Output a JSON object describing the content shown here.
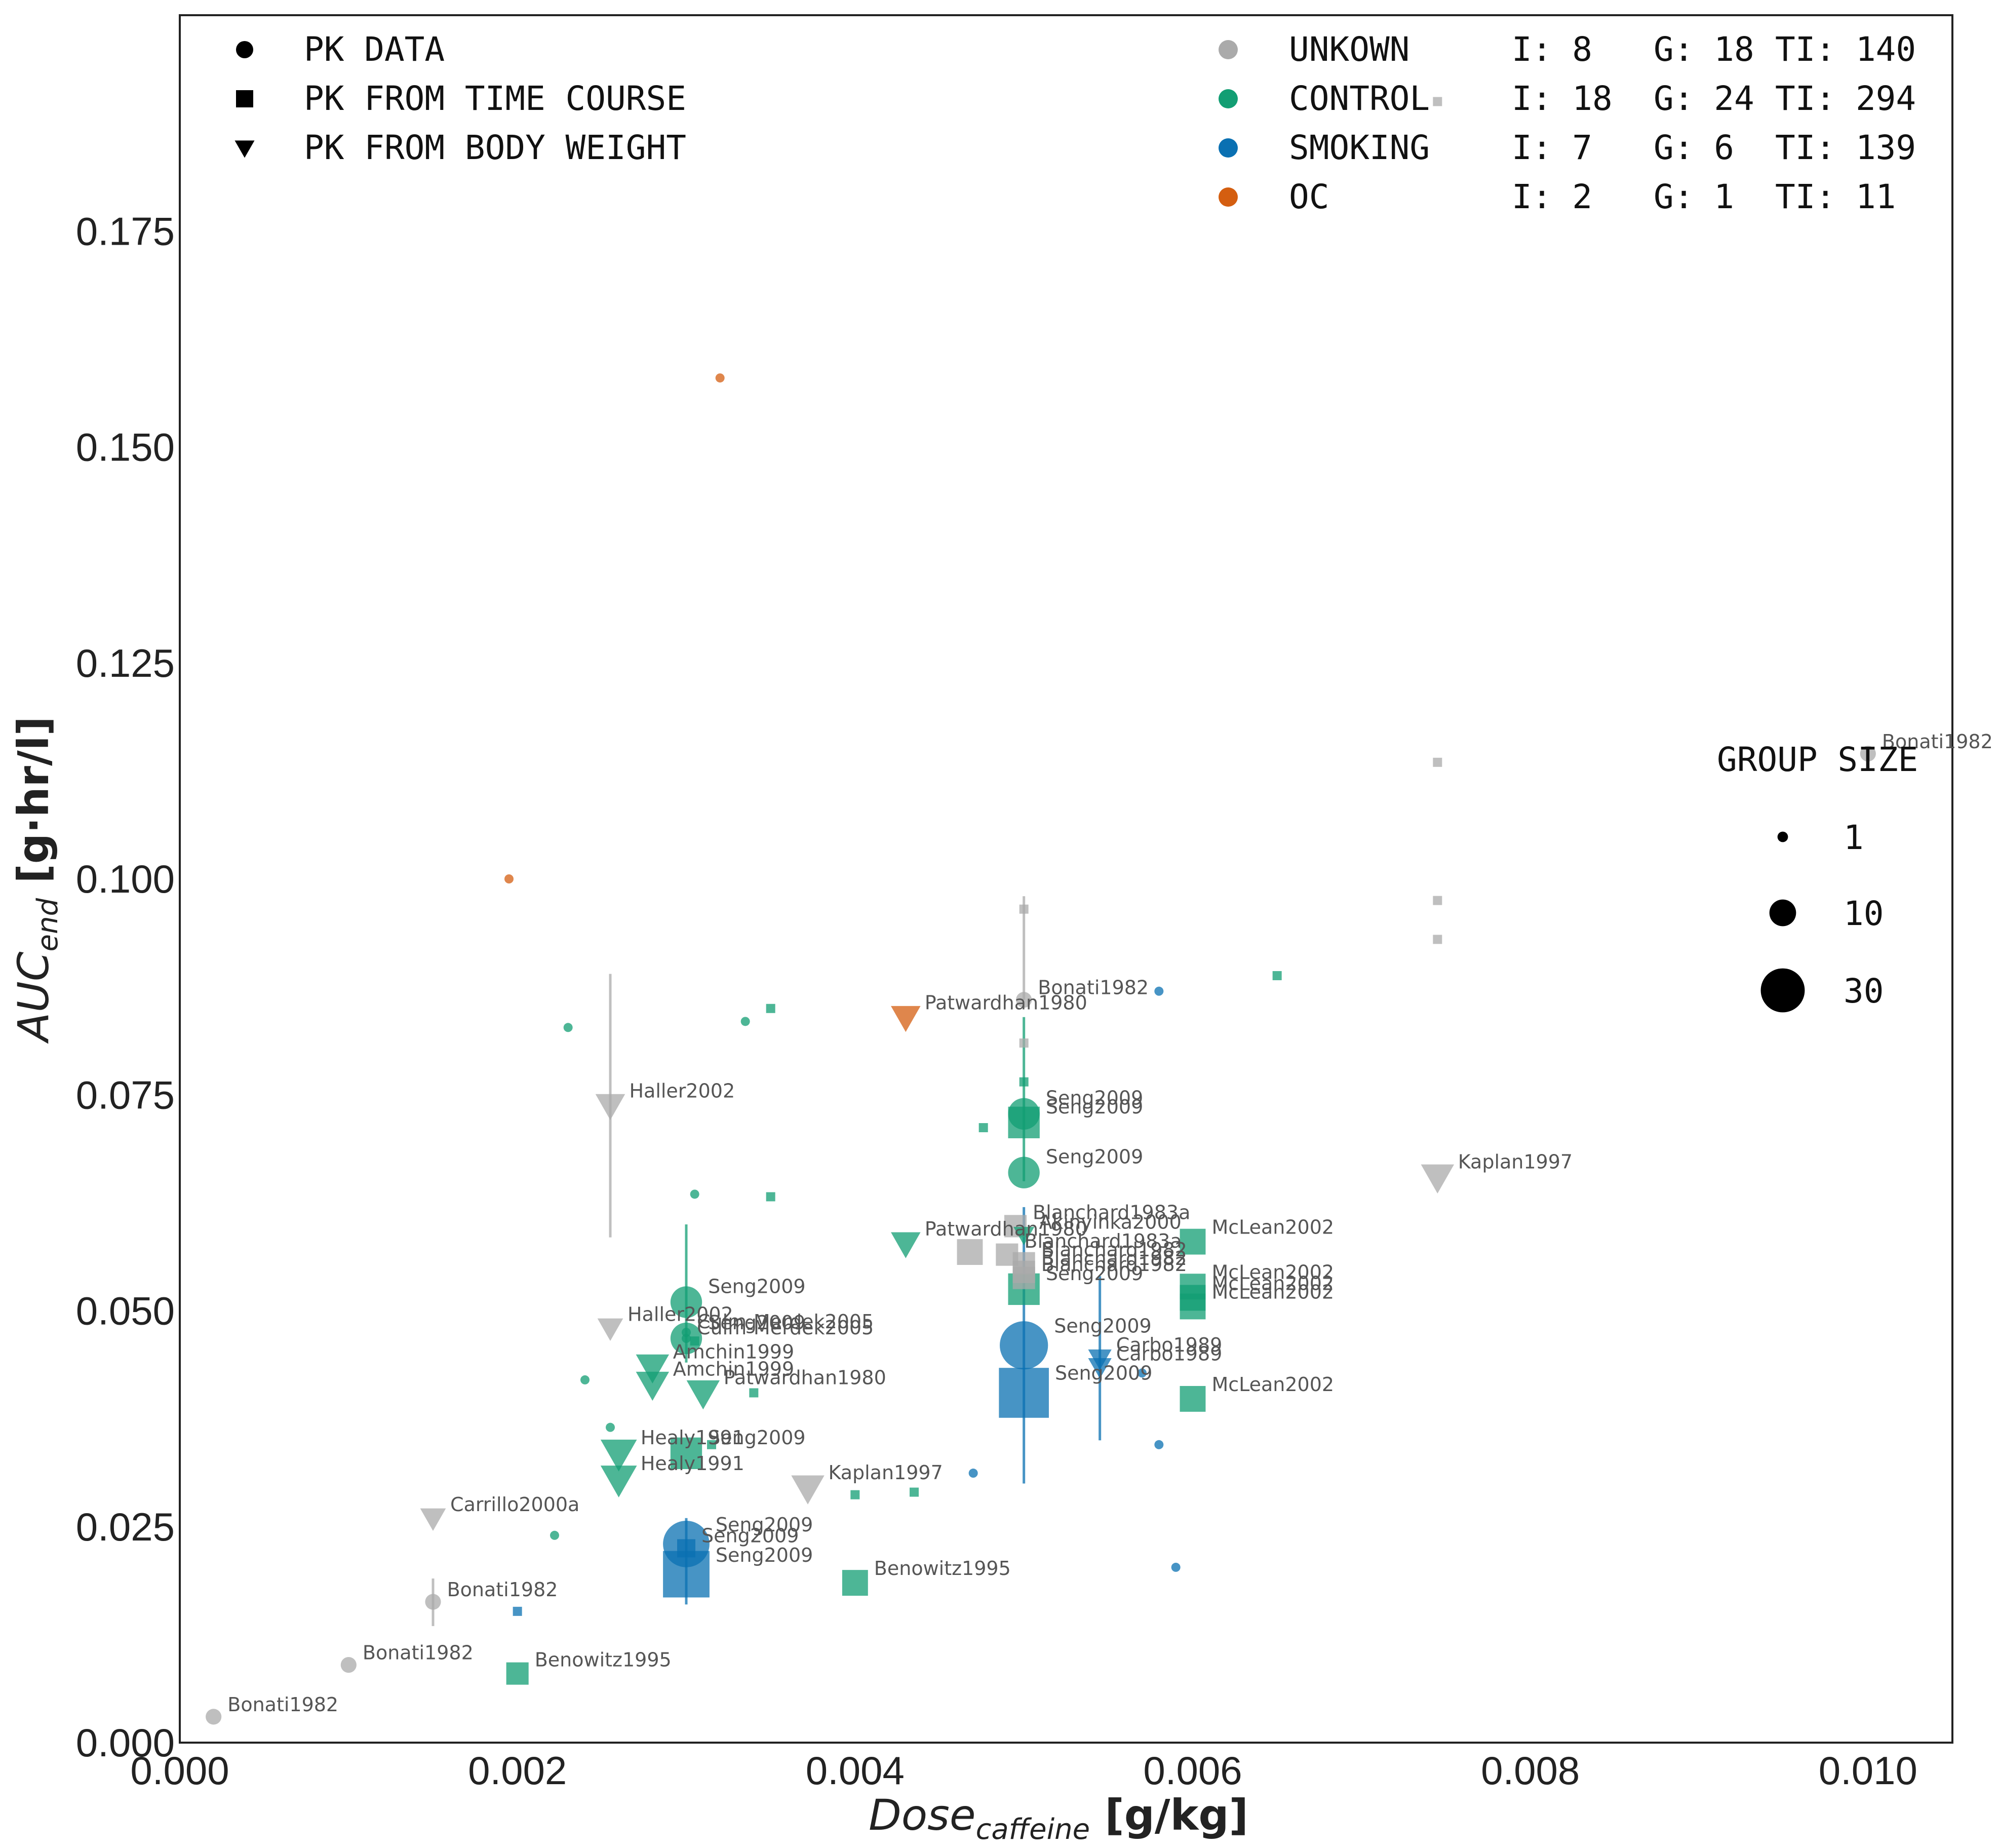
{
  "chart_data": {
    "type": "scatter",
    "xlabel_main": "Dose",
    "xlabel_sub": "caffeine",
    "xlabel_unit": " [g/kg]",
    "ylabel_main": "AUC",
    "ylabel_sub": "end",
    "ylabel_unit": " [g·hr/l]",
    "xlim": [
      0,
      0.0105
    ],
    "ylim": [
      0,
      0.2
    ],
    "xticks": [
      0,
      0.002,
      0.004,
      0.006,
      0.008,
      0.01
    ],
    "xtick_labels": [
      "0.000",
      "0.002",
      "0.004",
      "0.006",
      "0.008",
      "0.010"
    ],
    "yticks": [
      0,
      0.025,
      0.05,
      0.075,
      0.1,
      0.125,
      0.15,
      0.175
    ],
    "ytick_labels": [
      "0.000",
      "0.025",
      "0.050",
      "0.075",
      "0.100",
      "0.125",
      "0.150",
      "0.175"
    ],
    "grid": false,
    "colors": {
      "UNKOWN": "#aaaaaa",
      "CONTROL": "#129e73",
      "SMOKING": "#0a70b2",
      "OC": "#d45e10"
    },
    "marker_legend": [
      {
        "marker": "circle",
        "label": "PK DATA"
      },
      {
        "marker": "square",
        "label": "PK FROM TIME COURSE"
      },
      {
        "marker": "triangle",
        "label": "PK FROM BODY WEIGHT"
      }
    ],
    "group_legend": [
      {
        "group": "UNKOWN",
        "label": "UNKOWN",
        "I": "I: 8",
        "G": "G: 18",
        "TI": "TI: 140"
      },
      {
        "group": "CONTROL",
        "label": "CONTROL",
        "I": "I: 18",
        "G": "G: 24",
        "TI": "TI: 294"
      },
      {
        "group": "SMOKING",
        "label": "SMOKING",
        "I": "I: 7",
        "G": "G: 6",
        "TI": "TI: 139"
      },
      {
        "group": "OC",
        "label": "OC",
        "I": "I: 2",
        "G": "G: 1",
        "TI": "TI: 11"
      }
    ],
    "size_legend": {
      "title": "GROUP SIZE",
      "values": [
        1,
        10,
        30
      ]
    },
    "points": [
      {
        "x": 0.0002,
        "y": 0.003,
        "m": "circle",
        "g": "UNKOWN",
        "n": 3,
        "label": "Bonati1982"
      },
      {
        "x": 0.001,
        "y": 0.009,
        "m": "circle",
        "g": "UNKOWN",
        "n": 3,
        "label": "Bonati1982"
      },
      {
        "x": 0.0015,
        "y": 0.0163,
        "m": "circle",
        "g": "UNKOWN",
        "n": 3,
        "label": "Bonati1982",
        "err": [
          0.0135,
          0.019
        ]
      },
      {
        "x": 0.005,
        "y": 0.086,
        "m": "circle",
        "g": "UNKOWN",
        "n": 3,
        "label": "Bonati1982"
      },
      {
        "x": 0.01,
        "y": 0.1145,
        "m": "circle",
        "g": "UNKOWN",
        "n": 3,
        "label": "Bonati1982"
      },
      {
        "x": 0.00745,
        "y": 0.19,
        "m": "square",
        "g": "UNKOWN",
        "n": 1,
        "label": ""
      },
      {
        "x": 0.00745,
        "y": 0.1135,
        "m": "square",
        "g": "UNKOWN",
        "n": 1,
        "label": ""
      },
      {
        "x": 0.00745,
        "y": 0.0975,
        "m": "square",
        "g": "UNKOWN",
        "n": 1,
        "label": ""
      },
      {
        "x": 0.00745,
        "y": 0.093,
        "m": "square",
        "g": "UNKOWN",
        "n": 1,
        "label": ""
      },
      {
        "x": 0.005,
        "y": 0.0965,
        "m": "square",
        "g": "UNKOWN",
        "n": 1,
        "label": "",
        "err": [
          0.086,
          0.098
        ]
      },
      {
        "x": 0.005,
        "y": 0.081,
        "m": "square",
        "g": "UNKOWN",
        "n": 1,
        "label": ""
      },
      {
        "x": 0.00255,
        "y": 0.0738,
        "m": "triangle",
        "g": "UNKOWN",
        "n": 8,
        "label": "Haller2002",
        "err": [
          0.0585,
          0.089
        ]
      },
      {
        "x": 0.00255,
        "y": 0.048,
        "m": "triangle",
        "g": "UNKOWN",
        "n": 6,
        "label": "Haller2002"
      },
      {
        "x": 0.0015,
        "y": 0.026,
        "m": "triangle",
        "g": "UNKOWN",
        "n": 6,
        "label": "Carrillo2000a"
      },
      {
        "x": 0.00372,
        "y": 0.0295,
        "m": "triangle",
        "g": "UNKOWN",
        "n": 10,
        "label": "Kaplan1997"
      },
      {
        "x": 0.00745,
        "y": 0.0655,
        "m": "triangle",
        "g": "UNKOWN",
        "n": 10,
        "label": "Kaplan1997"
      },
      {
        "x": 0.00495,
        "y": 0.0598,
        "m": "square",
        "g": "UNKOWN",
        "n": 6,
        "label": "Blanchard1983a"
      },
      {
        "x": 0.0049,
        "y": 0.0565,
        "m": "square",
        "g": "UNKOWN",
        "n": 6,
        "label": "Blanchard1983a"
      },
      {
        "x": 0.005,
        "y": 0.0555,
        "m": "square",
        "g": "UNKOWN",
        "n": 6,
        "label": "Blanchard1982"
      },
      {
        "x": 0.005,
        "y": 0.0545,
        "m": "square",
        "g": "UNKOWN",
        "n": 6,
        "label": "Blanchard1982"
      },
      {
        "x": 0.005,
        "y": 0.0538,
        "m": "square",
        "g": "UNKOWN",
        "n": 6,
        "label": "Blanchard1982"
      },
      {
        "x": 0.00468,
        "y": 0.0568,
        "m": "square",
        "g": "UNKOWN",
        "n": 8,
        "label": ""
      },
      {
        "x": 0.0023,
        "y": 0.0828,
        "m": "circle",
        "g": "CONTROL",
        "n": 1,
        "label": ""
      },
      {
        "x": 0.00335,
        "y": 0.0835,
        "m": "circle",
        "g": "CONTROL",
        "n": 1,
        "label": ""
      },
      {
        "x": 0.0024,
        "y": 0.042,
        "m": "circle",
        "g": "CONTROL",
        "n": 1,
        "label": ""
      },
      {
        "x": 0.00255,
        "y": 0.0365,
        "m": "circle",
        "g": "CONTROL",
        "n": 1,
        "label": ""
      },
      {
        "x": 0.00305,
        "y": 0.0635,
        "m": "circle",
        "g": "CONTROL",
        "n": 1,
        "label": ""
      },
      {
        "x": 0.00222,
        "y": 0.024,
        "m": "circle",
        "g": "CONTROL",
        "n": 1,
        "label": ""
      },
      {
        "x": 0.0035,
        "y": 0.085,
        "m": "square",
        "g": "CONTROL",
        "n": 1,
        "label": ""
      },
      {
        "x": 0.0035,
        "y": 0.0632,
        "m": "square",
        "g": "CONTROL",
        "n": 1,
        "label": ""
      },
      {
        "x": 0.00476,
        "y": 0.0712,
        "m": "square",
        "g": "CONTROL",
        "n": 1,
        "label": ""
      },
      {
        "x": 0.005,
        "y": 0.0765,
        "m": "square",
        "g": "CONTROL",
        "n": 1,
        "label": ""
      },
      {
        "x": 0.0065,
        "y": 0.0888,
        "m": "square",
        "g": "CONTROL",
        "n": 1,
        "label": ""
      },
      {
        "x": 0.004,
        "y": 0.0287,
        "m": "square",
        "g": "CONTROL",
        "n": 1,
        "label": ""
      },
      {
        "x": 0.00435,
        "y": 0.029,
        "m": "square",
        "g": "CONTROL",
        "n": 1,
        "label": ""
      },
      {
        "x": 0.00315,
        "y": 0.0345,
        "m": "square",
        "g": "CONTROL",
        "n": 1,
        "label": ""
      },
      {
        "x": 0.0034,
        "y": 0.0405,
        "m": "square",
        "g": "CONTROL",
        "n": 1,
        "label": ""
      },
      {
        "x": 0.00305,
        "y": 0.0465,
        "m": "square",
        "g": "CONTROL",
        "n": 1,
        "label": ""
      },
      {
        "x": 0.005,
        "y": 0.0728,
        "m": "circle",
        "g": "CONTROL",
        "n": 12,
        "label": "Seng2009",
        "err": [
          0.065,
          0.084
        ]
      },
      {
        "x": 0.005,
        "y": 0.0718,
        "m": "square",
        "g": "CONTROL",
        "n": 12,
        "label": "Seng2009"
      },
      {
        "x": 0.005,
        "y": 0.066,
        "m": "circle",
        "g": "CONTROL",
        "n": 12,
        "label": "Seng2009"
      },
      {
        "x": 0.005,
        "y": 0.0525,
        "m": "square",
        "g": "CONTROL",
        "n": 12,
        "label": "Seng2009"
      },
      {
        "x": 0.003,
        "y": 0.051,
        "m": "circle",
        "g": "CONTROL",
        "n": 12,
        "label": "Seng2009",
        "err": [
          0.044,
          0.06
        ]
      },
      {
        "x": 0.003,
        "y": 0.0468,
        "m": "circle",
        "g": "CONTROL",
        "n": 12,
        "label": "Seng2009"
      },
      {
        "x": 0.003,
        "y": 0.0335,
        "m": "square",
        "g": "CONTROL",
        "n": 12,
        "label": "Seng2009"
      },
      {
        "x": 0.003,
        "y": 0.0475,
        "m": "circle",
        "g": "CONTROL",
        "n": 1,
        "label": "Culm-Merdek2005"
      },
      {
        "x": 0.003,
        "y": 0.0468,
        "m": "circle",
        "g": "CONTROL",
        "n": 1,
        "label": "Culm-Merdek2005"
      },
      {
        "x": 0.0028,
        "y": 0.0435,
        "m": "triangle",
        "g": "CONTROL",
        "n": 10,
        "label": "Amchin1999"
      },
      {
        "x": 0.0028,
        "y": 0.0415,
        "m": "triangle",
        "g": "CONTROL",
        "n": 10,
        "label": "Amchin1999"
      },
      {
        "x": 0.0031,
        "y": 0.0405,
        "m": "triangle",
        "g": "CONTROL",
        "n": 10,
        "label": "Patwardhan1980"
      },
      {
        "x": 0.0043,
        "y": 0.0578,
        "m": "triangle",
        "g": "CONTROL",
        "n": 8,
        "label": "Patwardhan1980"
      },
      {
        "x": 0.0026,
        "y": 0.0335,
        "m": "triangle",
        "g": "CONTROL",
        "n": 12,
        "label": "Healy1991"
      },
      {
        "x": 0.0026,
        "y": 0.0305,
        "m": "triangle",
        "g": "CONTROL",
        "n": 12,
        "label": "Healy1991"
      },
      {
        "x": 0.005,
        "y": 0.0588,
        "m": "triangle",
        "g": "CONTROL",
        "n": 4,
        "label": "Akinyinka2000"
      },
      {
        "x": 0.006,
        "y": 0.058,
        "m": "square",
        "g": "CONTROL",
        "n": 8,
        "label": "McLean2002"
      },
      {
        "x": 0.006,
        "y": 0.0528,
        "m": "square",
        "g": "CONTROL",
        "n": 8,
        "label": "McLean2002"
      },
      {
        "x": 0.006,
        "y": 0.0515,
        "m": "square",
        "g": "CONTROL",
        "n": 8,
        "label": "McLean2002"
      },
      {
        "x": 0.006,
        "y": 0.0505,
        "m": "square",
        "g": "CONTROL",
        "n": 8,
        "label": "McLean2002"
      },
      {
        "x": 0.006,
        "y": 0.0398,
        "m": "square",
        "g": "CONTROL",
        "n": 8,
        "label": "McLean2002"
      },
      {
        "x": 0.004,
        "y": 0.0185,
        "m": "square",
        "g": "CONTROL",
        "n": 8,
        "label": "Benowitz1995"
      },
      {
        "x": 0.002,
        "y": 0.008,
        "m": "square",
        "g": "CONTROL",
        "n": 6,
        "label": "Benowitz1995"
      },
      {
        "x": 0.0058,
        "y": 0.087,
        "m": "circle",
        "g": "SMOKING",
        "n": 1,
        "label": ""
      },
      {
        "x": 0.0057,
        "y": 0.0428,
        "m": "circle",
        "g": "SMOKING",
        "n": 1,
        "label": ""
      },
      {
        "x": 0.0058,
        "y": 0.0345,
        "m": "circle",
        "g": "SMOKING",
        "n": 1,
        "label": ""
      },
      {
        "x": 0.0047,
        "y": 0.0312,
        "m": "circle",
        "g": "SMOKING",
        "n": 1,
        "label": ""
      },
      {
        "x": 0.0059,
        "y": 0.0203,
        "m": "circle",
        "g": "SMOKING",
        "n": 1,
        "label": ""
      },
      {
        "x": 0.002,
        "y": 0.0152,
        "m": "square",
        "g": "SMOKING",
        "n": 1,
        "label": ""
      },
      {
        "x": 0.005,
        "y": 0.046,
        "m": "circle",
        "g": "SMOKING",
        "n": 28,
        "label": "Seng2009",
        "err": [
          0.03,
          0.062
        ]
      },
      {
        "x": 0.005,
        "y": 0.0405,
        "m": "square",
        "g": "SMOKING",
        "n": 30,
        "label": "Seng2009"
      },
      {
        "x": 0.003,
        "y": 0.023,
        "m": "circle",
        "g": "SMOKING",
        "n": 26,
        "label": "Seng2009",
        "err": [
          0.016,
          0.026
        ]
      },
      {
        "x": 0.003,
        "y": 0.0225,
        "m": "square",
        "g": "SMOKING",
        "n": 4,
        "label": "Seng2009"
      },
      {
        "x": 0.003,
        "y": 0.0195,
        "m": "square",
        "g": "SMOKING",
        "n": 26,
        "label": "Seng2009"
      },
      {
        "x": 0.00545,
        "y": 0.0445,
        "m": "triangle",
        "g": "SMOKING",
        "n": 5,
        "label": "Carbo1989",
        "err": [
          0.035,
          0.054
        ]
      },
      {
        "x": 0.00545,
        "y": 0.0435,
        "m": "triangle",
        "g": "SMOKING",
        "n": 5,
        "label": "Carbo1989"
      },
      {
        "x": 0.00195,
        "y": 0.1,
        "m": "circle",
        "g": "OC",
        "n": 1,
        "label": ""
      },
      {
        "x": 0.0032,
        "y": 0.158,
        "m": "circle",
        "g": "OC",
        "n": 1,
        "label": ""
      },
      {
        "x": 0.0043,
        "y": 0.084,
        "m": "triangle",
        "g": "OC",
        "n": 8,
        "label": "Patwardhan1980"
      }
    ]
  }
}
